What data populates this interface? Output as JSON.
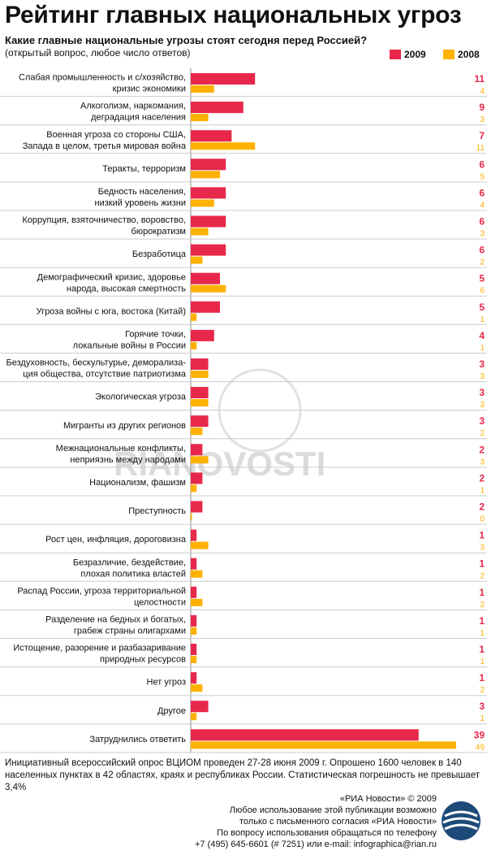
{
  "title": "Рейтинг главных национальных угроз",
  "subtitle": "Какие главные национальные угрозы стоят сегодня перед Россией?",
  "note": "(открытый вопрос, любое число ответов)",
  "colors": {
    "y2009": "#e8284a",
    "y2008": "#ffb100",
    "grid": "#cccccc"
  },
  "chart_data": {
    "type": "bar",
    "orientation": "horizontal",
    "categories": [
      [
        "Слабая промышленность и с/хозяйство,",
        "кризис экономики"
      ],
      [
        "Алкоголизм, наркомания,",
        "деградация населения"
      ],
      [
        "Военная угроза со стороны США,",
        "Запада в целом, третья мировая война"
      ],
      [
        "Теракты, терроризм"
      ],
      [
        "Бедность населения,",
        "низкий уровень жизни"
      ],
      [
        "Коррупция,  взяточничество, воровство,",
        "бюрократизм"
      ],
      [
        "Безработица"
      ],
      [
        "Демографический кризис, здоровье",
        "народа, высокая смертность"
      ],
      [
        "Угроза войны с юга, востока (Китай)"
      ],
      [
        "Горячие точки,",
        "локальные войны в России"
      ],
      [
        "Бездуховность, бескультурье, деморализа-",
        "ция общества, отсутствие патриотизма"
      ],
      [
        "Экологическая угроза"
      ],
      [
        "Мигранты из других регионов"
      ],
      [
        "Межнациональные конфликты,",
        "неприязнь между народами"
      ],
      [
        "Национализм, фашизм"
      ],
      [
        "Преступность"
      ],
      [
        "Рост цен, инфляция, дороговизна"
      ],
      [
        "Безразличие, бездействие,",
        "плохая политика властей"
      ],
      [
        "Распад России, угроза территориальной",
        "целостности"
      ],
      [
        "Разделение на бедных и богатых,",
        "грабеж страны олигархами"
      ],
      [
        "Истощение, разорение и разбазаривание",
        "природных ресурсов"
      ],
      [
        "Нет угроз"
      ],
      [
        "Другое"
      ],
      [
        "Затруднились ответить"
      ]
    ],
    "series": [
      {
        "name": "2009",
        "values": [
          11,
          9,
          7,
          6,
          6,
          6,
          6,
          5,
          5,
          4,
          3,
          3,
          3,
          2,
          2,
          2,
          1,
          1,
          1,
          1,
          1,
          1,
          3,
          39
        ]
      },
      {
        "name": "2008",
        "values": [
          4,
          3,
          11,
          5,
          4,
          3,
          2,
          6,
          1,
          1,
          3,
          3,
          2,
          3,
          1,
          0,
          3,
          2,
          2,
          1,
          1,
          2,
          1,
          49
        ]
      }
    ],
    "legend": "top-right"
  },
  "footer": {
    "survey": "Инициативный всероссийский опрос ВЦИОМ проведен 27-28 июня 2009 г. Опрошено 1600 человек в 140 населенных пунктах в 42 областях, краях и республиках России. Статистическая погрешность не превышает 3,4%",
    "copyright": [
      "«РИА Новости» © 2009",
      "Любое использование этой публикации возможно",
      "только с письменного согласия  «РИА Новости»",
      "По вопросу использования обращаться по телефону",
      "+7 (495) 645-6601 (# 7251) или e-mail: infographica@rian.ru"
    ]
  },
  "watermark": "RIANOVOSTI"
}
